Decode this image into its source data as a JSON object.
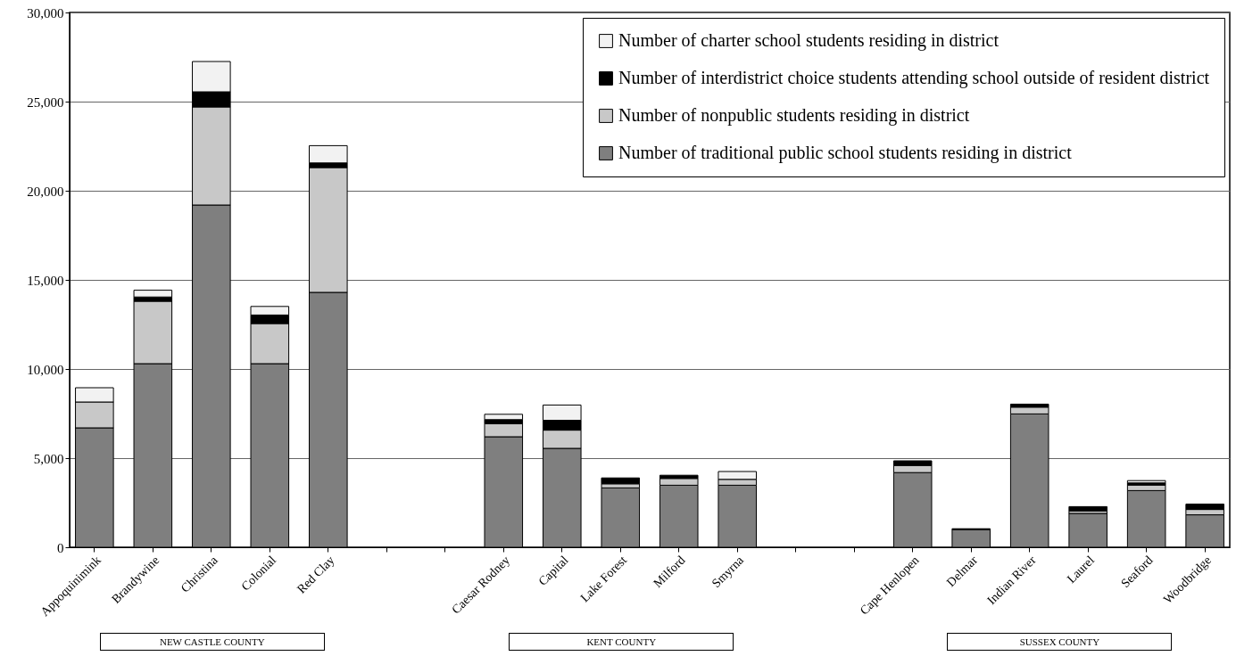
{
  "chart_data": {
    "type": "bar",
    "stacked": true,
    "categories": [
      "Appoquinimink",
      "Brandywine",
      "Christina",
      "Colonial",
      "Red Clay",
      null,
      null,
      "Caesar Rodney",
      "Capital",
      "Lake Forest",
      "Milford",
      "Smyrna",
      null,
      null,
      "Cape Henlopen",
      "Delmar",
      "Indian River",
      "Laurel",
      "Seaford",
      "Woodbridge"
    ],
    "series": [
      {
        "name": "Number of traditional public school students residing in district",
        "color": "#7f7f7f",
        "values": [
          6700,
          10300,
          19200,
          10300,
          14300,
          null,
          null,
          6200,
          5550,
          3330,
          3480,
          3480,
          null,
          null,
          4190,
          990,
          7480,
          1900,
          3180,
          1820
        ]
      },
      {
        "name": "Number of nonpublic students residing in district",
        "color": "#c8c8c8",
        "values": [
          1450,
          3500,
          5500,
          2250,
          7000,
          null,
          null,
          730,
          1020,
          230,
          380,
          330,
          null,
          null,
          400,
          0,
          380,
          140,
          310,
          300
        ]
      },
      {
        "name": "Number of interdistrict choice students attending school outside of resident district",
        "color": "#000000",
        "values": [
          0,
          240,
          850,
          480,
          260,
          null,
          null,
          230,
          550,
          330,
          180,
          0,
          null,
          null,
          260,
          50,
          170,
          240,
          120,
          300
        ]
      },
      {
        "name": "Number of charter school students residing in district",
        "color": "#f2f2f2",
        "values": [
          800,
          380,
          1700,
          480,
          970,
          null,
          null,
          300,
          860,
          0,
          0,
          440,
          null,
          null,
          0,
          0,
          0,
          0,
          130,
          0
        ]
      }
    ],
    "ylim": [
      0,
      30000
    ],
    "yticks": [
      0,
      {
        "value": 5000,
        "label": "5,000"
      },
      {
        "value": 10000,
        "label": "10,000"
      },
      {
        "value": 15000,
        "label": "15,000"
      },
      {
        "value": 20000,
        "label": "20,000"
      },
      {
        "value": 25000,
        "label": "25,000"
      },
      {
        "value": 30000,
        "label": "30,000"
      }
    ],
    "grid": "y",
    "legend": "top right",
    "annotations": [
      "NEW CASTLE COUNTY",
      "KENT COUNTY",
      "SUSSEX COUNTY"
    ]
  }
}
